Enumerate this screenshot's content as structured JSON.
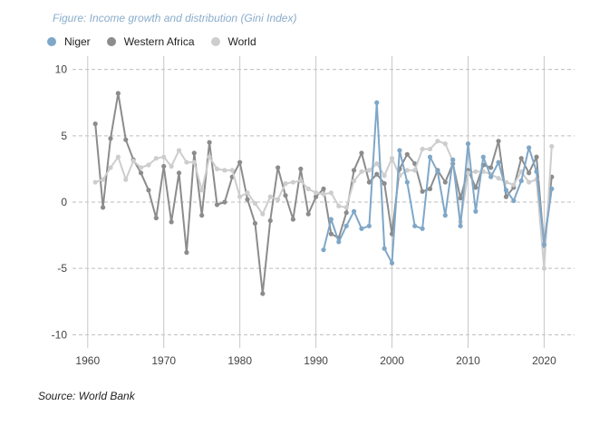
{
  "figure": {
    "title": "Figure: Income growth and distribution (Gini Index)"
  },
  "source": "Source: World Bank",
  "chart_data": {
    "type": "line",
    "title": "Figure: Income growth and distribution (Gini Index)",
    "xlabel": "",
    "ylabel": "",
    "xlim": [
      1958,
      2024
    ],
    "ylim": [
      -11,
      11
    ],
    "x_ticks": [
      1960,
      1970,
      1980,
      1990,
      2000,
      2010,
      2020
    ],
    "y_ticks": [
      10,
      5,
      0,
      -5,
      -10
    ],
    "grid": {
      "vertical": "solid",
      "horizontal": "dashed"
    },
    "legend_position": "top-left",
    "series": [
      {
        "name": "Western Africa",
        "color": "#8c8c8c",
        "x": [
          1961,
          1962,
          1963,
          1964,
          1965,
          1966,
          1967,
          1968,
          1969,
          1970,
          1971,
          1972,
          1973,
          1974,
          1975,
          1976,
          1977,
          1978,
          1979,
          1980,
          1981,
          1982,
          1983,
          1984,
          1985,
          1986,
          1987,
          1988,
          1989,
          1990,
          1991,
          1992,
          1993,
          1994,
          1995,
          1996,
          1997,
          1998,
          1999,
          2000,
          2001,
          2002,
          2003,
          2004,
          2005,
          2006,
          2007,
          2008,
          2009,
          2010,
          2011,
          2012,
          2013,
          2014,
          2015,
          2016,
          2017,
          2018,
          2019,
          2020,
          2021
        ],
        "y": [
          5.9,
          -0.4,
          4.8,
          8.2,
          4.7,
          3.2,
          2.2,
          0.9,
          -1.2,
          2.7,
          -1.5,
          2.2,
          -3.8,
          3.7,
          -1.0,
          4.5,
          -0.2,
          0.0,
          1.9,
          3.0,
          0.2,
          -1.6,
          -6.9,
          -1.4,
          2.6,
          0.5,
          -1.3,
          2.5,
          -0.9,
          0.4,
          1.0,
          -2.4,
          -2.7,
          -0.8,
          2.4,
          3.7,
          1.5,
          2.1,
          1.4,
          -2.4,
          2.5,
          3.6,
          2.9,
          0.8,
          1.0,
          2.4,
          1.5,
          2.9,
          0.3,
          2.4,
          1.1,
          2.8,
          2.6,
          4.6,
          0.4,
          1.1,
          3.3,
          2.2,
          3.4,
          -3.3,
          1.9
        ]
      },
      {
        "name": "World",
        "color": "#cdcdcd",
        "x": [
          1961,
          1962,
          1963,
          1964,
          1965,
          1966,
          1967,
          1968,
          1969,
          1970,
          1971,
          1972,
          1973,
          1974,
          1975,
          1976,
          1977,
          1978,
          1979,
          1980,
          1981,
          1982,
          1983,
          1984,
          1985,
          1986,
          1987,
          1988,
          1989,
          1990,
          1991,
          1992,
          1993,
          1994,
          1995,
          1996,
          1997,
          1998,
          1999,
          2000,
          2001,
          2002,
          2003,
          2004,
          2005,
          2006,
          2007,
          2008,
          2009,
          2010,
          2011,
          2012,
          2013,
          2014,
          2015,
          2016,
          2017,
          2018,
          2019,
          2020,
          2021
        ],
        "y": [
          1.5,
          1.7,
          2.6,
          3.4,
          1.7,
          3.1,
          2.6,
          2.8,
          3.3,
          3.4,
          2.7,
          3.9,
          3.0,
          3.0,
          0.9,
          3.4,
          2.5,
          2.4,
          2.4,
          0.4,
          0.7,
          -0.1,
          -0.9,
          0.4,
          0.2,
          1.4,
          1.5,
          1.6,
          1.0,
          0.7,
          0.6,
          0.7,
          -0.3,
          -0.4,
          1.6,
          2.3,
          2.4,
          2.9,
          2.0,
          3.3,
          2.0,
          2.4,
          2.4,
          4.0,
          4.0,
          4.6,
          4.4,
          3.1,
          -1.5,
          2.2,
          2.3,
          2.3,
          2.1,
          1.8,
          1.5,
          1.3,
          2.3,
          1.5,
          1.7,
          -5.0,
          4.2
        ]
      },
      {
        "name": "Niger",
        "color": "#7fa7c8",
        "x": [
          1991,
          1992,
          1993,
          1994,
          1995,
          1996,
          1997,
          1998,
          1999,
          2000,
          2001,
          2002,
          2003,
          2004,
          2005,
          2006,
          2007,
          2008,
          2009,
          2010,
          2011,
          2012,
          2013,
          2014,
          2015,
          2016,
          2017,
          2018,
          2019,
          2020,
          2021
        ],
        "y": [
          -3.6,
          -1.3,
          -3.0,
          -1.8,
          -0.7,
          -2.0,
          -1.8,
          7.5,
          -3.5,
          -4.6,
          3.9,
          1.5,
          -1.8,
          -2.0,
          3.4,
          2.3,
          -1.0,
          3.2,
          -1.8,
          4.4,
          -0.7,
          3.4,
          1.9,
          3.0,
          0.9,
          0.1,
          1.6,
          4.1,
          2.3,
          -3.2,
          1.0
        ]
      }
    ]
  }
}
